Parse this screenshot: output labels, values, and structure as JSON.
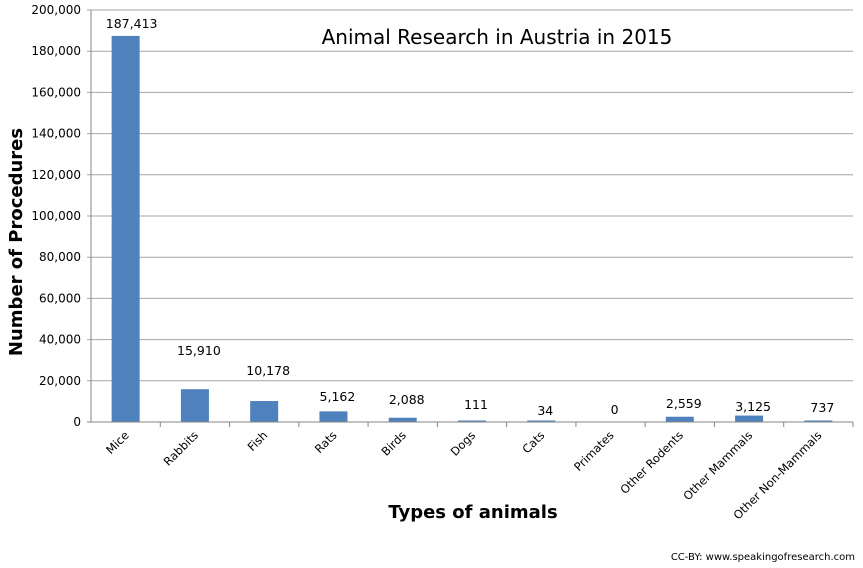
{
  "chart_data": {
    "type": "bar",
    "title": "Animal Research in Austria in 2015",
    "xlabel": "Types of animals",
    "ylabel": "Number of Procedures",
    "categories": [
      "Mice",
      "Rabbits",
      "Fish",
      "Rats",
      "Birds",
      "Dogs",
      "Cats",
      "Primates",
      "Other Rodents",
      "Other Mammals",
      "Other Non-Mammals"
    ],
    "values": [
      187413,
      15910,
      10178,
      5162,
      2088,
      111,
      34,
      0,
      2559,
      3125,
      737
    ],
    "data_labels": [
      "187,413",
      "15,910",
      "10,178",
      "5,162",
      "2,088",
      "111",
      "34",
      "0",
      "2,559",
      "3,125",
      "737"
    ],
    "yticks": [
      "0",
      "20,000",
      "40,000",
      "60,000",
      "80,000",
      "100,000",
      "120,000",
      "140,000",
      "160,000",
      "180,000",
      "200,000"
    ],
    "ylim": [
      0,
      200000
    ],
    "grid": true,
    "legend": "none",
    "bar_color": "#4F81BD",
    "credit": "CC-BY: www.speakingofresearch.com"
  }
}
